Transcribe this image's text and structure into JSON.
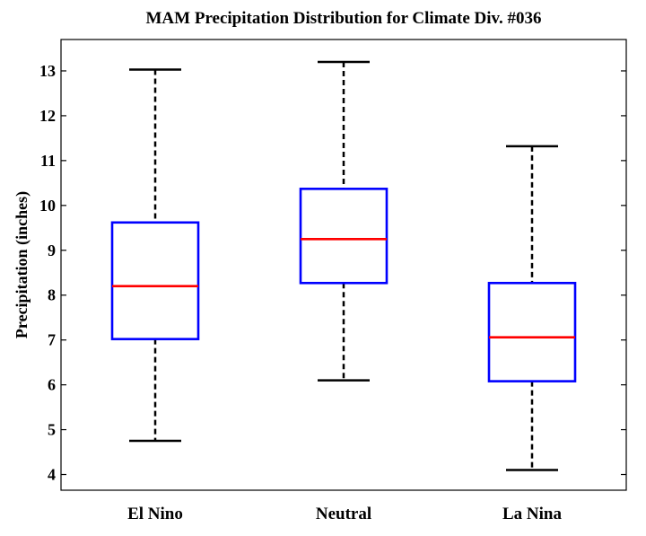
{
  "chart_data": {
    "type": "boxplot",
    "title": "MAM Precipitation Distribution for Climate Div. #036",
    "xlabel": "",
    "ylabel": "Precipitation (inches)",
    "ylim": [
      3.65,
      13.7
    ],
    "yticks": [
      "4",
      "5",
      "6",
      "7",
      "8",
      "9",
      "10",
      "11",
      "12",
      "13"
    ],
    "categories": [
      "El Nino",
      "Neutral",
      "La Nina"
    ],
    "series": [
      {
        "name": "El Nino",
        "whisker_low": 4.75,
        "q1": 7.02,
        "median": 8.2,
        "q3": 9.62,
        "whisker_high": 13.03
      },
      {
        "name": "Neutral",
        "whisker_low": 6.1,
        "q1": 8.27,
        "median": 9.25,
        "q3": 10.37,
        "whisker_high": 13.2
      },
      {
        "name": "La Nina",
        "whisker_low": 4.1,
        "q1": 6.08,
        "median": 7.06,
        "q3": 8.27,
        "whisker_high": 11.32
      }
    ],
    "colors": {
      "box": "#0000ff",
      "median": "#ff0000",
      "whisker": "#000000",
      "axes": "#000000"
    }
  }
}
